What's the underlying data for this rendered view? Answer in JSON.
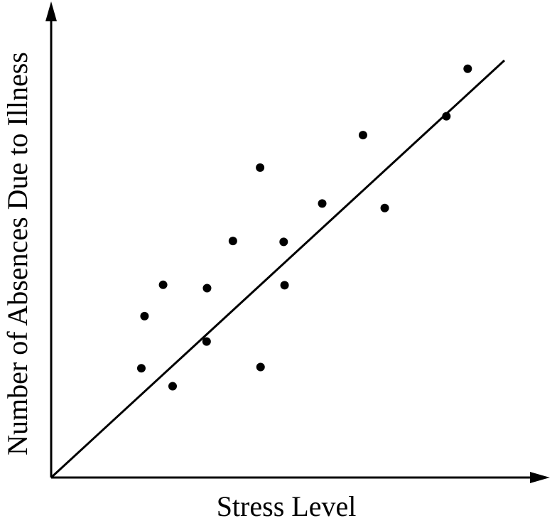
{
  "chart_data": {
    "type": "scatter",
    "title": "",
    "xlabel": "Stress Level",
    "ylabel": "Number of Absences Due to Illness",
    "xlim": [
      0,
      100
    ],
    "ylim": [
      0,
      100
    ],
    "ticks": "none",
    "grid": false,
    "legend": "none",
    "points": [
      {
        "x": 19.9,
        "y": 26.2
      },
      {
        "x": 20.6,
        "y": 38.7
      },
      {
        "x": 26.8,
        "y": 21.9
      },
      {
        "x": 24.7,
        "y": 46.2
      },
      {
        "x": 34.4,
        "y": 45.4
      },
      {
        "x": 34.3,
        "y": 32.6
      },
      {
        "x": 40.1,
        "y": 56.7
      },
      {
        "x": 46.1,
        "y": 74.3
      },
      {
        "x": 46.2,
        "y": 26.5
      },
      {
        "x": 51.3,
        "y": 56.5
      },
      {
        "x": 51.5,
        "y": 46.1
      },
      {
        "x": 59.8,
        "y": 65.7
      },
      {
        "x": 68.8,
        "y": 82.1
      },
      {
        "x": 73.6,
        "y": 64.6
      },
      {
        "x": 87.2,
        "y": 86.6
      },
      {
        "x": 91.9,
        "y": 98.0
      }
    ],
    "trendline": {
      "x": [
        0,
        100
      ],
      "y": [
        0,
        100
      ]
    },
    "colors": {
      "points": "#000000",
      "line": "#000000",
      "axes": "#000000"
    }
  }
}
